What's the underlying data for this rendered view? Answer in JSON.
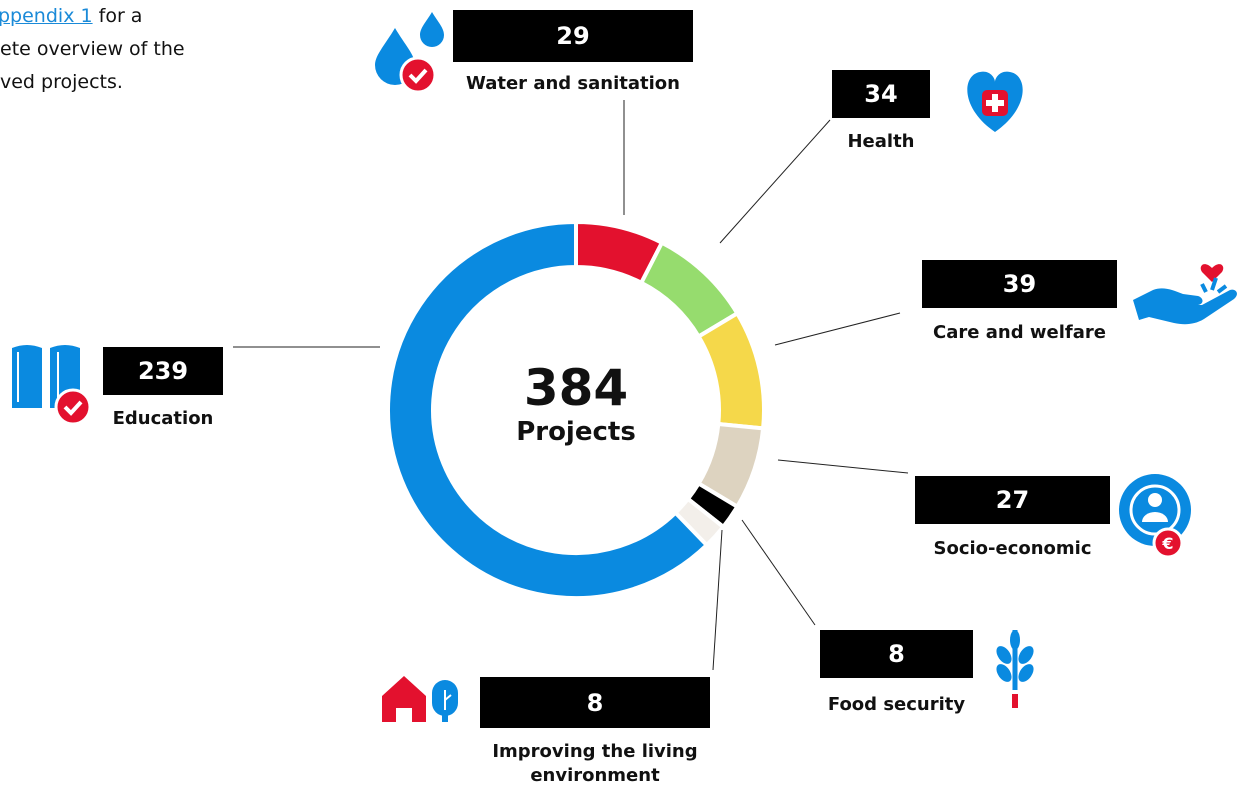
{
  "note": {
    "link": "ppendix 1",
    "first_rest": "for a",
    "lines": [
      "ete overview of the",
      "ved projects."
    ]
  },
  "chart_data": {
    "type": "pie",
    "categories": [
      "Water and sanitation",
      "Health",
      "Care and welfare",
      "Socio-economic",
      "Food security",
      "Improving the living environment",
      "Education"
    ],
    "values": [
      29,
      34,
      39,
      27,
      8,
      8,
      239
    ],
    "colors": [
      "#e3112e",
      "#96dc6e",
      "#f5d84a",
      "#ddd3c0",
      "#000000",
      "#f3efea",
      "#0a8ae0"
    ],
    "total": 384,
    "total_label": "Projects"
  }
}
